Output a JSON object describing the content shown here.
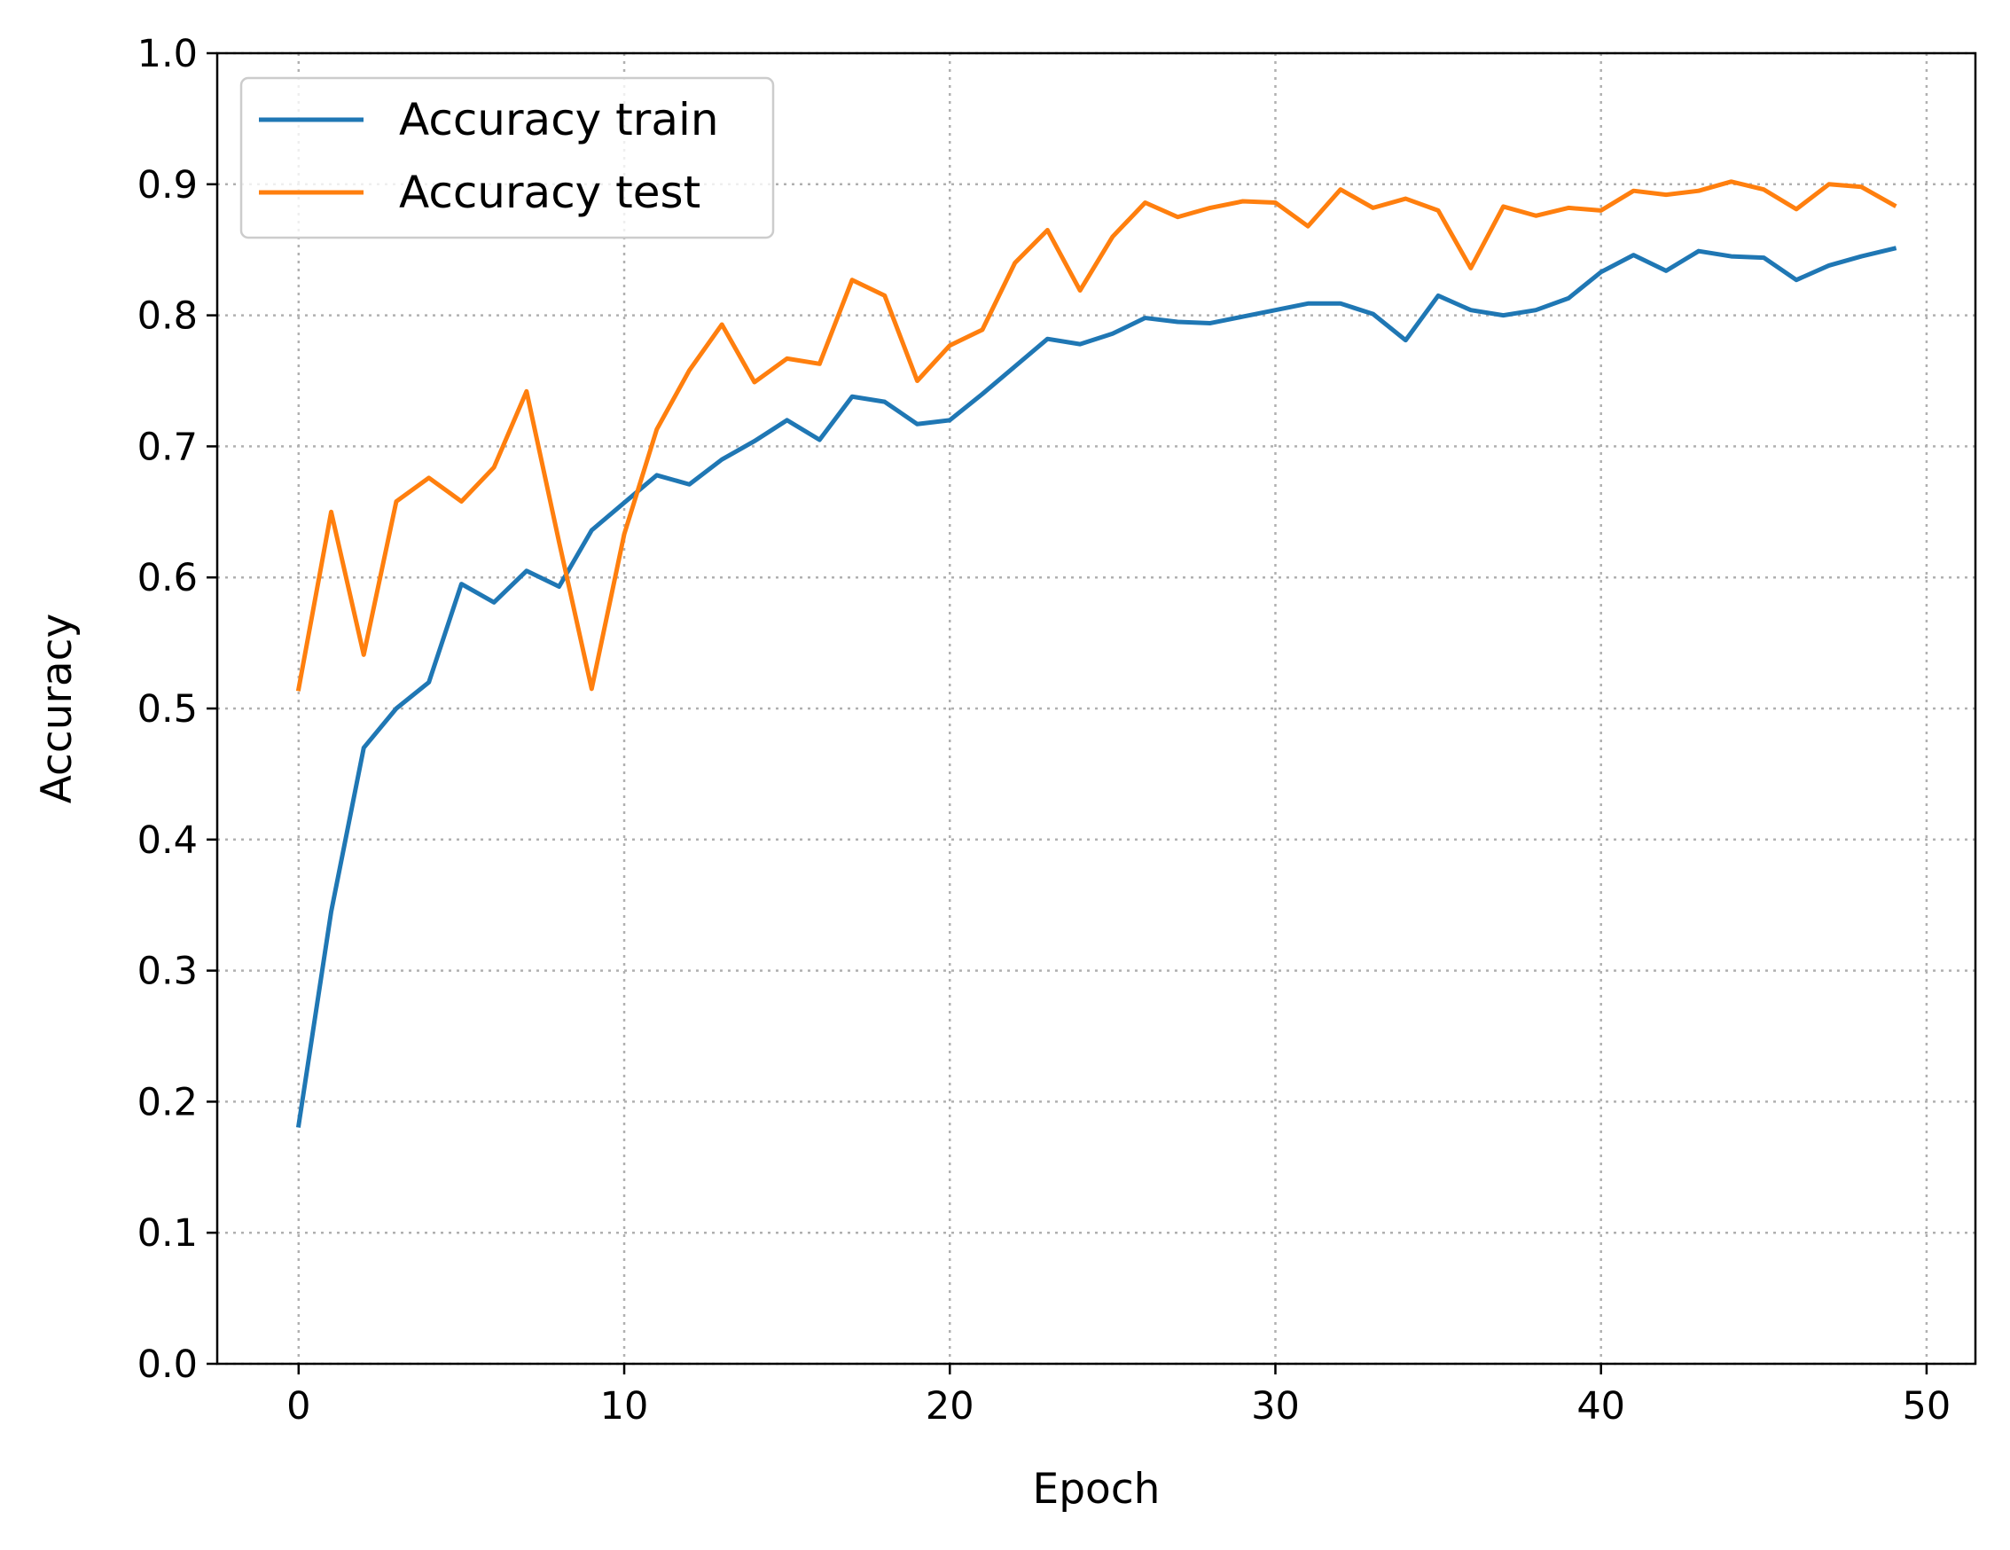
{
  "chart_data": {
    "type": "line",
    "title": "",
    "xlabel": "Epoch",
    "ylabel": "Accuracy",
    "xlim": [
      -2.5,
      51.5
    ],
    "ylim": [
      0.0,
      1.0
    ],
    "xticks": [
      0,
      10,
      20,
      30,
      40,
      50
    ],
    "xtick_labels": [
      "0",
      "10",
      "20",
      "30",
      "40",
      "50"
    ],
    "yticks": [
      0.0,
      0.1,
      0.2,
      0.3,
      0.4,
      0.5,
      0.6,
      0.7,
      0.8,
      0.9,
      1.0
    ],
    "ytick_labels": [
      "0.0",
      "0.1",
      "0.2",
      "0.3",
      "0.4",
      "0.5",
      "0.6",
      "0.7",
      "0.8",
      "0.9",
      "1.0"
    ],
    "grid": true,
    "legend_position": "top-left",
    "x": [
      0,
      1,
      2,
      3,
      4,
      5,
      6,
      7,
      8,
      9,
      10,
      11,
      12,
      13,
      14,
      15,
      16,
      17,
      18,
      19,
      20,
      21,
      22,
      23,
      24,
      25,
      26,
      27,
      28,
      29,
      30,
      31,
      32,
      33,
      34,
      35,
      36,
      37,
      38,
      39,
      40,
      41,
      42,
      43,
      44,
      45,
      46,
      47,
      48,
      49
    ],
    "series": [
      {
        "name": "Accuracy train",
        "color": "#1f77b4",
        "values": [
          0.182,
          0.345,
          0.47,
          0.5,
          0.52,
          0.595,
          0.581,
          0.605,
          0.593,
          0.636,
          0.657,
          0.678,
          0.671,
          0.69,
          0.704,
          0.72,
          0.705,
          0.738,
          0.734,
          0.717,
          0.72,
          0.74,
          0.761,
          0.782,
          0.778,
          0.786,
          0.798,
          0.795,
          0.794,
          0.799,
          0.804,
          0.809,
          0.809,
          0.801,
          0.781,
          0.815,
          0.804,
          0.8,
          0.804,
          0.813,
          0.833,
          0.846,
          0.834,
          0.849,
          0.845,
          0.844,
          0.827,
          0.838,
          0.845,
          0.851
        ]
      },
      {
        "name": "Accuracy test",
        "color": "#ff7f0e",
        "values": [
          0.515,
          0.65,
          0.541,
          0.658,
          0.676,
          0.658,
          0.684,
          0.742,
          0.627,
          0.515,
          0.633,
          0.713,
          0.758,
          0.793,
          0.749,
          0.767,
          0.763,
          0.827,
          0.815,
          0.75,
          0.777,
          0.789,
          0.84,
          0.865,
          0.819,
          0.86,
          0.886,
          0.875,
          0.882,
          0.887,
          0.886,
          0.868,
          0.896,
          0.882,
          0.889,
          0.88,
          0.836,
          0.883,
          0.876,
          0.882,
          0.88,
          0.895,
          0.892,
          0.895,
          0.902,
          0.896,
          0.881,
          0.9,
          0.898,
          0.884
        ]
      }
    ]
  }
}
